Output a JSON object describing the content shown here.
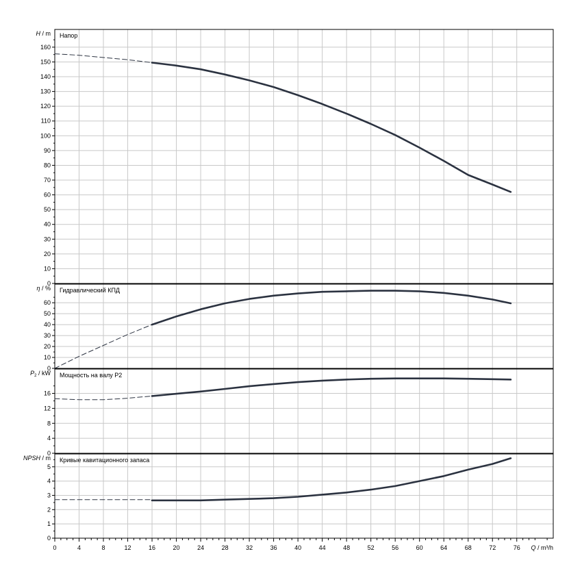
{
  "chart_data": [
    {
      "type": "line",
      "title": "Напор",
      "ylabel": "m",
      "ylabel_symbol": "H",
      "xlim": [
        0,
        82
      ],
      "ylim": [
        0,
        172
      ],
      "yticks": [
        0,
        10,
        20,
        30,
        40,
        50,
        60,
        70,
        80,
        90,
        100,
        110,
        120,
        130,
        140,
        150,
        160
      ],
      "series": [
        {
          "dashed": true,
          "points": [
            [
              0,
              155.5
            ],
            [
              4,
              154.5
            ],
            [
              8,
              153
            ],
            [
              12,
              151.5
            ],
            [
              16,
              149.5
            ]
          ]
        },
        {
          "dashed": false,
          "points": [
            [
              16,
              149.5
            ],
            [
              20,
              147.5
            ],
            [
              24,
              145
            ],
            [
              28,
              141.5
            ],
            [
              32,
              137.5
            ],
            [
              36,
              133
            ],
            [
              40,
              127.5
            ],
            [
              44,
              121.5
            ],
            [
              48,
              115
            ],
            [
              52,
              108
            ],
            [
              56,
              100.5
            ],
            [
              60,
              92
            ],
            [
              64,
              83
            ],
            [
              68,
              73.5
            ],
            [
              72,
              67
            ],
            [
              75,
              62
            ]
          ]
        }
      ]
    },
    {
      "type": "line",
      "title": "Гидравлический КПД",
      "ylabel": "%",
      "ylabel_symbol": "η",
      "xlim": [
        0,
        82
      ],
      "ylim": [
        0,
        77
      ],
      "yticks": [
        0,
        10,
        20,
        30,
        40,
        50,
        60
      ],
      "series": [
        {
          "dashed": true,
          "points": [
            [
              0,
              0
            ],
            [
              4,
              11
            ],
            [
              8,
              21
            ],
            [
              12,
              31
            ],
            [
              16,
              40
            ]
          ]
        },
        {
          "dashed": false,
          "points": [
            [
              16,
              40
            ],
            [
              20,
              47.5
            ],
            [
              24,
              54
            ],
            [
              28,
              59.5
            ],
            [
              32,
              63.5
            ],
            [
              36,
              66.5
            ],
            [
              40,
              68.5
            ],
            [
              44,
              70
            ],
            [
              48,
              70.5
            ],
            [
              52,
              71
            ],
            [
              56,
              71
            ],
            [
              60,
              70.5
            ],
            [
              64,
              69
            ],
            [
              68,
              66.5
            ],
            [
              72,
              63
            ],
            [
              75,
              59.5
            ]
          ]
        }
      ]
    },
    {
      "type": "line",
      "title": "Мощность на валу P2",
      "ylabel": "kW",
      "ylabel_symbol": "P",
      "ylabel_subscript": "2",
      "xlim": [
        0,
        82
      ],
      "ylim": [
        0,
        22.5
      ],
      "yticks": [
        0,
        4,
        8,
        12,
        16
      ],
      "series": [
        {
          "dashed": true,
          "points": [
            [
              0,
              14.6
            ],
            [
              4,
              14.3
            ],
            [
              8,
              14.3
            ],
            [
              12,
              14.7
            ],
            [
              16,
              15.3
            ]
          ]
        },
        {
          "dashed": false,
          "points": [
            [
              16,
              15.3
            ],
            [
              20,
              15.9
            ],
            [
              24,
              16.5
            ],
            [
              28,
              17.2
            ],
            [
              32,
              17.9
            ],
            [
              36,
              18.5
            ],
            [
              40,
              19.0
            ],
            [
              44,
              19.4
            ],
            [
              48,
              19.7
            ],
            [
              52,
              19.9
            ],
            [
              56,
              20.0
            ],
            [
              60,
              20.0
            ],
            [
              64,
              20.0
            ],
            [
              68,
              19.9
            ],
            [
              72,
              19.8
            ],
            [
              75,
              19.7
            ]
          ]
        }
      ]
    },
    {
      "type": "line",
      "title": "Кривые кавитационного запаса",
      "ylabel": "m",
      "ylabel_symbol": "NPSH",
      "xlim": [
        0,
        82
      ],
      "ylim": [
        0,
        5.9
      ],
      "yticks": [
        0,
        1,
        2,
        3,
        4,
        5
      ],
      "series": [
        {
          "dashed": true,
          "points": [
            [
              0,
              2.7
            ],
            [
              16,
              2.7
            ]
          ]
        },
        {
          "dashed": false,
          "points": [
            [
              16,
              2.65
            ],
            [
              20,
              2.65
            ],
            [
              24,
              2.65
            ],
            [
              28,
              2.7
            ],
            [
              32,
              2.75
            ],
            [
              36,
              2.8
            ],
            [
              40,
              2.9
            ],
            [
              44,
              3.05
            ],
            [
              48,
              3.2
            ],
            [
              52,
              3.4
            ],
            [
              56,
              3.65
            ],
            [
              60,
              4.0
            ],
            [
              64,
              4.35
            ],
            [
              68,
              4.8
            ],
            [
              72,
              5.2
            ],
            [
              75,
              5.6
            ]
          ]
        }
      ]
    }
  ],
  "x_axis": {
    "label": "Q / m³/h",
    "label_symbol": "Q",
    "label_unit": "m³/h",
    "xlim": [
      0,
      82
    ],
    "ticks": [
      0,
      4,
      8,
      12,
      16,
      20,
      24,
      28,
      32,
      36,
      40,
      44,
      48,
      52,
      56,
      60,
      64,
      68,
      72,
      76
    ]
  },
  "colors": {
    "curve": "#2b3240",
    "grid": "#c8c8c8",
    "frame": "#000000"
  }
}
